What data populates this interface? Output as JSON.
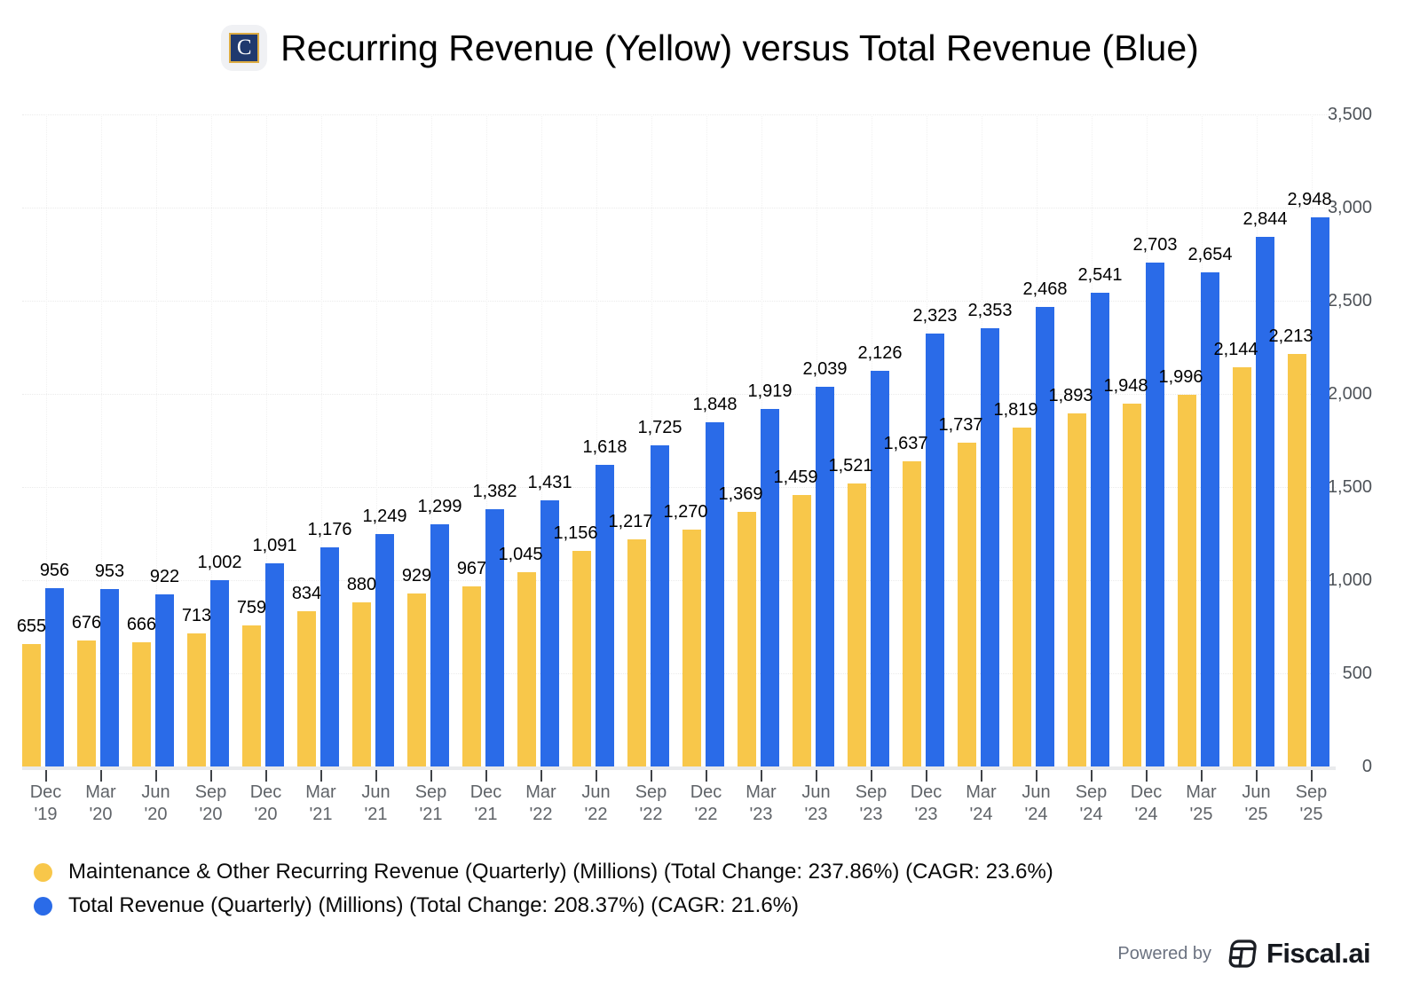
{
  "header": {
    "logo_letter": "C",
    "title": "Recurring Revenue (Yellow) versus Total Revenue (Blue)"
  },
  "chart_data": {
    "type": "bar",
    "title": "Recurring Revenue (Yellow) versus Total Revenue (Blue)",
    "categories": [
      {
        "month": "Dec",
        "year": "'19"
      },
      {
        "month": "Mar",
        "year": "'20"
      },
      {
        "month": "Jun",
        "year": "'20"
      },
      {
        "month": "Sep",
        "year": "'20"
      },
      {
        "month": "Dec",
        "year": "'20"
      },
      {
        "month": "Mar",
        "year": "'21"
      },
      {
        "month": "Jun",
        "year": "'21"
      },
      {
        "month": "Sep",
        "year": "'21"
      },
      {
        "month": "Dec",
        "year": "'21"
      },
      {
        "month": "Mar",
        "year": "'22"
      },
      {
        "month": "Jun",
        "year": "'22"
      },
      {
        "month": "Sep",
        "year": "'22"
      },
      {
        "month": "Dec",
        "year": "'22"
      },
      {
        "month": "Mar",
        "year": "'23"
      },
      {
        "month": "Jun",
        "year": "'23"
      },
      {
        "month": "Sep",
        "year": "'23"
      },
      {
        "month": "Dec",
        "year": "'23"
      },
      {
        "month": "Mar",
        "year": "'24"
      },
      {
        "month": "Jun",
        "year": "'24"
      },
      {
        "month": "Sep",
        "year": "'24"
      },
      {
        "month": "Dec",
        "year": "'24"
      },
      {
        "month": "Mar",
        "year": "'25"
      },
      {
        "month": "Jun",
        "year": "'25"
      },
      {
        "month": "Sep",
        "year": "'25"
      }
    ],
    "series": [
      {
        "name": "Maintenance & Other Recurring Revenue (Quarterly) (Millions)",
        "color": "#F8C74A",
        "values": [
          655,
          676,
          666,
          713,
          759,
          834,
          880,
          929,
          967,
          1045,
          1156,
          1217,
          1270,
          1369,
          1459,
          1521,
          1637,
          1737,
          1819,
          1893,
          1948,
          1996,
          2144,
          2213
        ]
      },
      {
        "name": "Total Revenue (Quarterly) (Millions)",
        "color": "#2A6BE8",
        "values": [
          956,
          953,
          922,
          1002,
          1091,
          1176,
          1249,
          1299,
          1382,
          1431,
          1618,
          1725,
          1848,
          1919,
          2039,
          2126,
          2323,
          2353,
          2468,
          2541,
          2703,
          2654,
          2844,
          2948
        ]
      }
    ],
    "xlabel": "",
    "ylabel": "",
    "ylim": [
      0,
      3500
    ],
    "yticks": [
      0,
      500,
      1000,
      1500,
      2000,
      2500,
      3000,
      3500
    ],
    "grid": true,
    "value_labels": true,
    "legend_position": "bottom-left"
  },
  "legend": {
    "items": [
      {
        "label": "Maintenance & Other Recurring Revenue (Quarterly) (Millions) (Total Change: 237.86%) (CAGR: 23.6%)",
        "color": "#F8C74A"
      },
      {
        "label": "Total Revenue (Quarterly) (Millions) (Total Change: 208.37%) (CAGR: 21.6%)",
        "color": "#2A6BE8"
      }
    ]
  },
  "footer": {
    "powered_by": "Powered by",
    "brand": "Fiscal.ai"
  }
}
